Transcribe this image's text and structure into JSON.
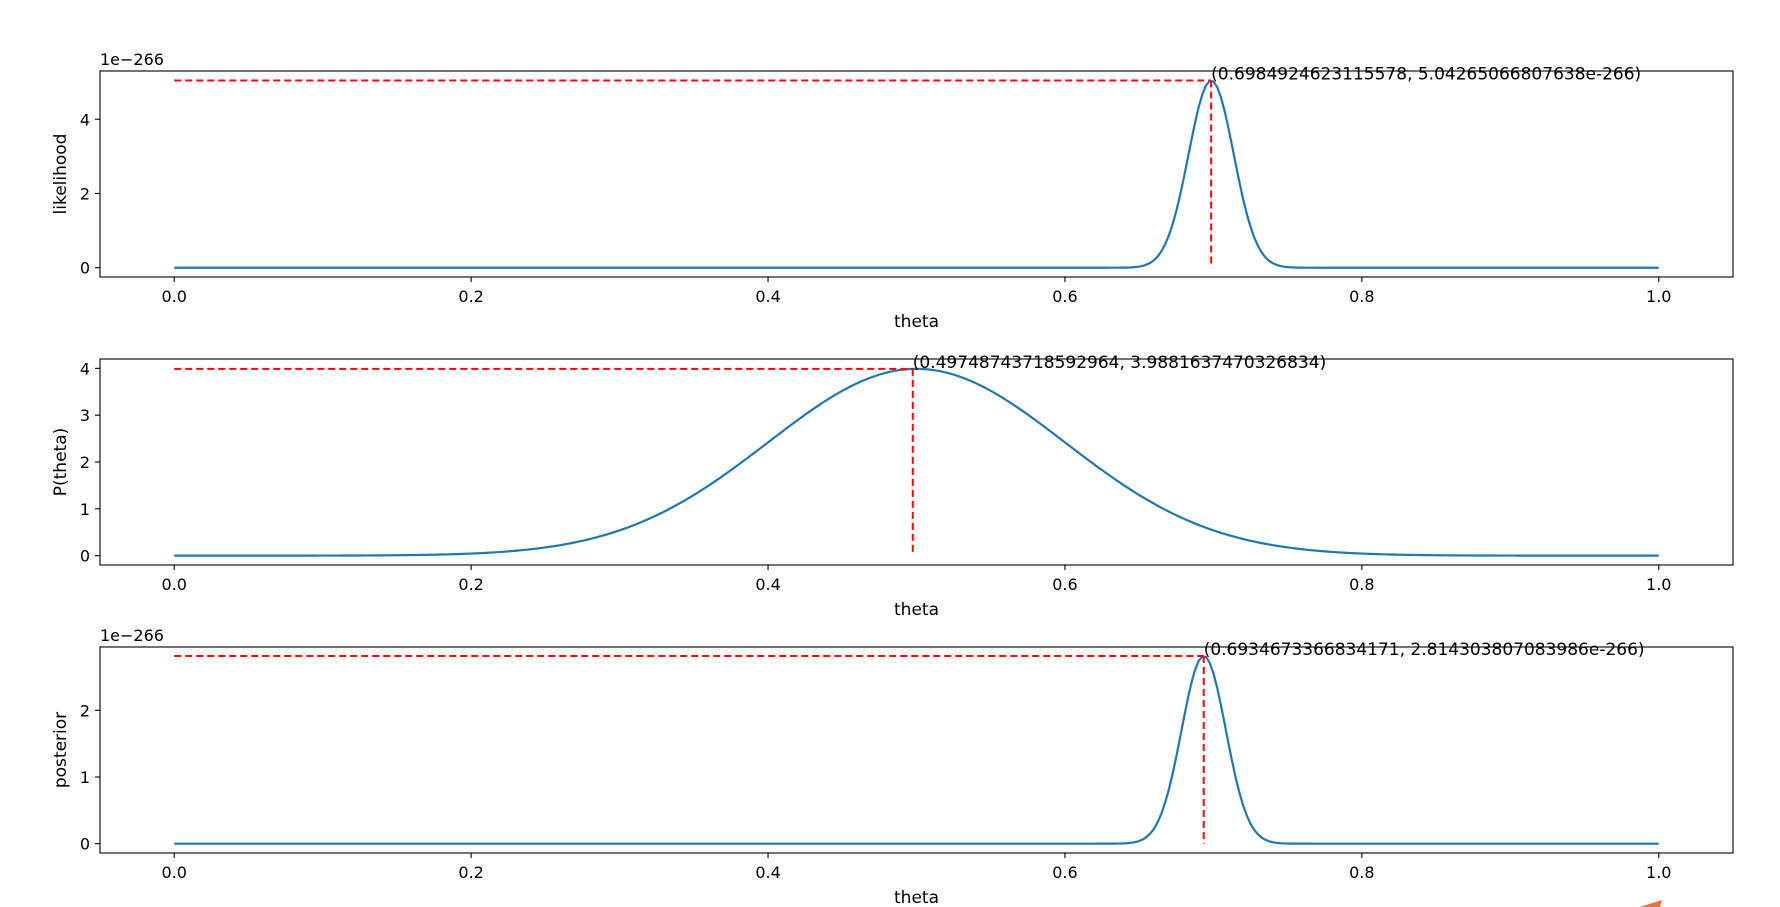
{
  "chart_data": [
    {
      "type": "line",
      "title": "",
      "xlabel": "theta",
      "ylabel": "likelihood",
      "offset_text": "1e−266",
      "xlim": [
        -0.05,
        1.05
      ],
      "ylim": [
        -0.25,
        5.3
      ],
      "x_ticks": [
        0.0,
        0.2,
        0.4,
        0.6,
        0.8,
        1.0
      ],
      "x_tick_labels": [
        "0.0",
        "0.2",
        "0.4",
        "0.6",
        "0.8",
        "1.0"
      ],
      "y_ticks": [
        0,
        2,
        4
      ],
      "y_tick_labels": [
        "0",
        "2",
        "4"
      ],
      "curve": {
        "kind": "gaussian",
        "peak_x": 0.6984924623115578,
        "peak_y": 5.04265066807638,
        "sigma": 0.0152
      },
      "peak": {
        "x": 0.6984924623115578,
        "y": 5.04265066807638
      },
      "annotation": "(0.6984924623115578, 5.04265066807638e-266)"
    },
    {
      "type": "line",
      "title": "",
      "xlabel": "theta",
      "ylabel": "P(theta)",
      "offset_text": "",
      "xlim": [
        -0.05,
        1.05
      ],
      "ylim": [
        -0.2,
        4.2
      ],
      "x_ticks": [
        0.0,
        0.2,
        0.4,
        0.6,
        0.8,
        1.0
      ],
      "x_tick_labels": [
        "0.0",
        "0.2",
        "0.4",
        "0.6",
        "0.8",
        "1.0"
      ],
      "y_ticks": [
        0,
        1,
        2,
        3,
        4
      ],
      "y_tick_labels": [
        "0",
        "1",
        "2",
        "3",
        "4"
      ],
      "curve": {
        "kind": "gaussian",
        "peak_x": 0.5,
        "peak_y": 3.989,
        "sigma": 0.1
      },
      "peak": {
        "x": 0.49748743718592964,
        "y": 3.9881637470326834
      },
      "annotation": "(0.49748743718592964, 3.9881637470326834)"
    },
    {
      "type": "line",
      "title": "",
      "xlabel": "theta",
      "ylabel": "posterior",
      "offset_text": "1e−266",
      "xlim": [
        -0.05,
        1.05
      ],
      "ylim": [
        -0.14,
        2.95
      ],
      "x_ticks": [
        0.0,
        0.2,
        0.4,
        0.6,
        0.8,
        1.0
      ],
      "x_tick_labels": [
        "0.0",
        "0.2",
        "0.4",
        "0.6",
        "0.8",
        "1.0"
      ],
      "y_ticks": [
        0,
        1,
        2
      ],
      "y_tick_labels": [
        "0",
        "1",
        "2"
      ],
      "curve": {
        "kind": "gaussian",
        "peak_x": 0.6934673366834171,
        "peak_y": 2.814303807083986,
        "sigma": 0.0149
      },
      "peak": {
        "x": 0.6934673366834171,
        "y": 2.814303807083986
      },
      "annotation": "(0.6934673366834171, 2.814303807083986e-266)"
    }
  ],
  "colors": {
    "line": "#1f77b4",
    "marker_lines": "#ff0000",
    "axes": "#000000",
    "corner_mark": "#e8703a"
  }
}
